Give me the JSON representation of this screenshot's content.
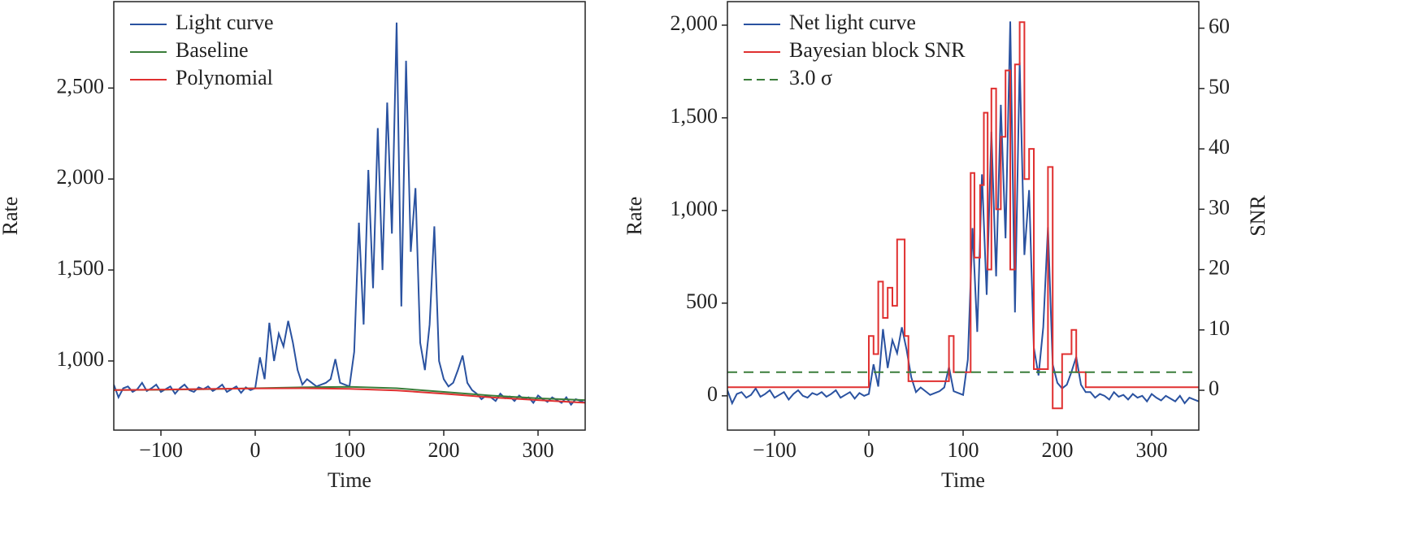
{
  "chart_data": [
    {
      "type": "line",
      "xlabel": "Time",
      "ylabel": "Rate",
      "xlim": [
        -150,
        350
      ],
      "ylim": [
        620,
        2975
      ],
      "xticks": [
        {
          "value": -100,
          "label": "−100"
        },
        0,
        100,
        200,
        300
      ],
      "yticks": [
        {
          "value": 1000,
          "label": "1,000"
        },
        {
          "value": 1500,
          "label": "1,500"
        },
        {
          "value": 2000,
          "label": "2,000"
        },
        {
          "value": 2500,
          "label": "2,500"
        }
      ],
      "legend": "upper left",
      "series": [
        {
          "name": "Light curve",
          "color": "#2a52a0",
          "x": [
            -150,
            -145,
            -140,
            -135,
            -130,
            -125,
            -120,
            -115,
            -110,
            -105,
            -100,
            -95,
            -90,
            -85,
            -80,
            -75,
            -70,
            -65,
            -60,
            -55,
            -50,
            -45,
            -40,
            -35,
            -30,
            -25,
            -20,
            -15,
            -10,
            -5,
            0,
            5,
            10,
            15,
            20,
            25,
            30,
            35,
            40,
            45,
            50,
            55,
            60,
            65,
            70,
            75,
            80,
            85,
            90,
            95,
            100,
            105,
            110,
            115,
            120,
            125,
            130,
            135,
            140,
            145,
            150,
            155,
            160,
            165,
            170,
            175,
            180,
            185,
            190,
            195,
            200,
            205,
            210,
            215,
            220,
            225,
            230,
            235,
            240,
            245,
            250,
            255,
            260,
            265,
            270,
            275,
            280,
            285,
            290,
            295,
            300,
            305,
            310,
            315,
            320,
            325,
            330,
            335,
            340,
            345,
            350
          ],
          "values": [
            870,
            800,
            850,
            860,
            830,
            845,
            880,
            835,
            850,
            870,
            830,
            845,
            860,
            820,
            850,
            870,
            840,
            830,
            855,
            845,
            860,
            835,
            850,
            870,
            830,
            845,
            860,
            825,
            855,
            840,
            850,
            1020,
            900,
            1210,
            1000,
            1150,
            1080,
            1220,
            1100,
            950,
            870,
            900,
            880,
            860,
            870,
            880,
            900,
            1010,
            880,
            870,
            860,
            1050,
            1760,
            1200,
            2050,
            1400,
            2280,
            1500,
            2420,
            1700,
            2860,
            1300,
            2650,
            1600,
            1950,
            1100,
            950,
            1200,
            1740,
            1000,
            900,
            860,
            880,
            950,
            1030,
            880,
            840,
            820,
            790,
            810,
            800,
            780,
            820,
            795,
            805,
            780,
            810,
            790,
            800,
            770,
            810,
            790,
            775,
            800,
            785,
            770,
            800,
            760,
            790,
            780,
            770
          ]
        },
        {
          "name": "Baseline",
          "color": "#3a7d3a",
          "x": [
            -150,
            -100,
            -50,
            0,
            50,
            100,
            150,
            200,
            250,
            300,
            350
          ],
          "values": [
            840,
            842,
            845,
            850,
            855,
            858,
            850,
            830,
            810,
            795,
            785
          ]
        },
        {
          "name": "Polynomial",
          "color": "#e03030",
          "x": [
            -150,
            -100,
            -50,
            0,
            50,
            100,
            150,
            200,
            250,
            300,
            350
          ],
          "values": [
            840,
            843,
            846,
            849,
            850,
            847,
            838,
            820,
            800,
            785,
            770
          ]
        }
      ]
    },
    {
      "type": "line",
      "xlabel": "Time",
      "ylabel": "Rate",
      "y2label": "SNR",
      "xlim": [
        -150,
        350
      ],
      "ylim": [
        -185,
        2127
      ],
      "y2lim": [
        -6.6,
        64.4
      ],
      "xticks": [
        {
          "value": -100,
          "label": "−100"
        },
        0,
        100,
        200,
        300
      ],
      "yticks": [
        0,
        500,
        {
          "value": 1000,
          "label": "1,000"
        },
        {
          "value": 1500,
          "label": "1,500"
        },
        {
          "value": 2000,
          "label": "2,000"
        }
      ],
      "y2ticks": [
        0,
        10,
        20,
        30,
        40,
        50,
        60
      ],
      "legend": "upper left",
      "series": [
        {
          "name": "Net light curve",
          "color": "#2a52a0",
          "x": [
            -150,
            -145,
            -140,
            -135,
            -130,
            -125,
            -120,
            -115,
            -110,
            -105,
            -100,
            -95,
            -90,
            -85,
            -80,
            -75,
            -70,
            -65,
            -60,
            -55,
            -50,
            -45,
            -40,
            -35,
            -30,
            -25,
            -20,
            -15,
            -10,
            -5,
            0,
            5,
            10,
            15,
            20,
            25,
            30,
            35,
            40,
            45,
            50,
            55,
            60,
            65,
            70,
            75,
            80,
            85,
            90,
            95,
            100,
            105,
            110,
            115,
            120,
            125,
            130,
            135,
            140,
            145,
            150,
            155,
            160,
            165,
            170,
            175,
            180,
            185,
            190,
            195,
            200,
            205,
            210,
            215,
            220,
            225,
            230,
            235,
            240,
            245,
            250,
            255,
            260,
            265,
            270,
            275,
            280,
            285,
            290,
            295,
            300,
            305,
            310,
            315,
            320,
            325,
            330,
            335,
            340,
            345,
            350
          ],
          "values": [
            30,
            -40,
            10,
            20,
            -10,
            5,
            40,
            -5,
            10,
            30,
            -10,
            5,
            20,
            -20,
            10,
            30,
            0,
            -10,
            15,
            5,
            20,
            -5,
            10,
            30,
            -10,
            5,
            20,
            -15,
            15,
            0,
            10,
            170,
            50,
            360,
            150,
            300,
            230,
            370,
            250,
            100,
            20,
            45,
            25,
            5,
            15,
            25,
            45,
            155,
            25,
            15,
            5,
            195,
            905,
            345,
            1195,
            545,
            1425,
            645,
            1570,
            850,
            2020,
            450,
            1800,
            760,
            1110,
            260,
            110,
            370,
            910,
            170,
            70,
            40,
            60,
            130,
            210,
            60,
            20,
            20,
            -10,
            10,
            0,
            -20,
            20,
            -5,
            5,
            -20,
            10,
            -10,
            0,
            -30,
            10,
            -10,
            -25,
            0,
            -15,
            -30,
            0,
            -40,
            -10,
            -20,
            -30
          ]
        },
        {
          "name": "Bayesian block SNR",
          "color": "#e03030",
          "axis": "y2",
          "drawstyle": "steps-post",
          "x": [
            -150,
            0,
            5,
            10,
            15,
            20,
            25,
            30,
            38,
            42,
            85,
            90,
            108,
            112,
            118,
            122,
            126,
            130,
            135,
            140,
            145,
            150,
            155,
            160,
            165,
            170,
            175,
            190,
            195,
            205,
            215,
            220,
            230,
            350
          ],
          "values": [
            0.5,
            9,
            6,
            18,
            12,
            17,
            14,
            25,
            9,
            1.5,
            9,
            3,
            36,
            22,
            34,
            46,
            20,
            50,
            30,
            42,
            53,
            20,
            54,
            61,
            35,
            40,
            3.5,
            37,
            -3,
            6,
            10,
            3,
            0.5,
            0.5
          ]
        },
        {
          "name": "3.0 σ",
          "color": "#3a7d3a",
          "axis": "y2",
          "linestyle": "dashed",
          "value": 3
        }
      ]
    }
  ]
}
